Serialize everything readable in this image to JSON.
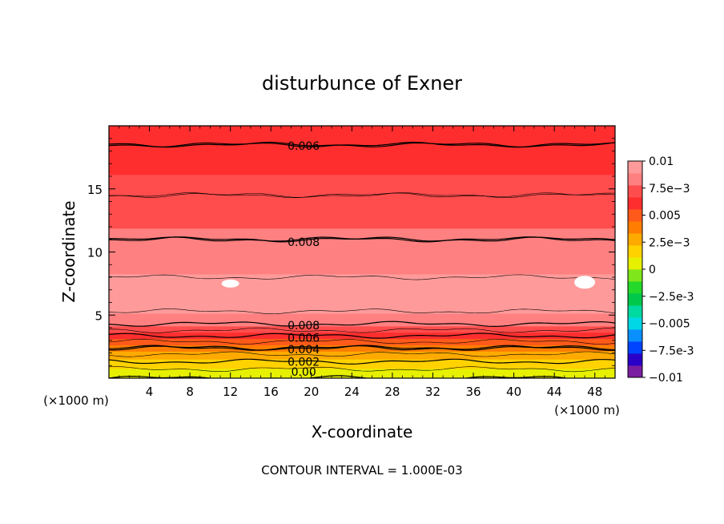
{
  "chart_data": {
    "type": "heatmap",
    "title": "disturbunce of Exner",
    "xlabel": "X-coordinate",
    "ylabel": "Z-coordinate",
    "x_unit_left": "(×1000 m)",
    "x_unit_right": "(×1000 m)",
    "xlim": [
      0,
      50
    ],
    "ylim": [
      0,
      20
    ],
    "x_ticks": [
      4,
      8,
      12,
      16,
      20,
      24,
      28,
      32,
      36,
      40,
      44,
      48
    ],
    "y_ticks": [
      5,
      10,
      15
    ],
    "x_tick_labels": [
      "4",
      "8",
      "12",
      "16",
      "20",
      "24",
      "28",
      "32",
      "36",
      "40",
      "44",
      "48"
    ],
    "y_tick_labels": [
      "5",
      "10",
      "15"
    ],
    "colorbar": {
      "range": [
        -0.01,
        0.01
      ],
      "tick_values": [
        -0.01,
        -0.0075,
        -0.005,
        -0.0025,
        0,
        0.0025,
        0.005,
        0.0075,
        0.01
      ],
      "tick_labels": [
        "-0.01",
        "-7.5e-3",
        "-0.005",
        "-2.5e-3",
        "0",
        "2.5e-3",
        "0.005",
        "7.5e-3",
        "0.01"
      ],
      "colors": [
        "#7a1fa2",
        "#2a00c8",
        "#0044ff",
        "#0a8fff",
        "#00d7e6",
        "#00d9a0",
        "#00c84a",
        "#25d92a",
        "#7ee61a",
        "#e6f000",
        "#ffd200",
        "#ffaa00",
        "#ff7d00",
        "#ff5a1a",
        "#ff2e2e",
        "#ff4d4d",
        "#ff8080",
        "#ff9a9a"
      ]
    },
    "contour_interval": 0.001,
    "contour_labels": [
      {
        "text": "0.006",
        "x": 19,
        "z": 18.4
      },
      {
        "text": "0.008",
        "x": 19,
        "z": 10.8
      },
      {
        "text": "0.008",
        "x": 19,
        "z": 4.2
      },
      {
        "text": "0.006",
        "x": 19,
        "z": 3.2
      },
      {
        "text": "0.004",
        "x": 19,
        "z": 2.3
      },
      {
        "text": "0.002",
        "x": 19,
        "z": 1.3
      },
      {
        "text": "0.00",
        "x": 19,
        "z": 0.5
      }
    ],
    "field_profile": [
      {
        "z": 0.0,
        "value": 0.0
      },
      {
        "z": 0.6,
        "value": 0.0008
      },
      {
        "z": 1.2,
        "value": 0.0018
      },
      {
        "z": 1.8,
        "value": 0.0028
      },
      {
        "z": 2.4,
        "value": 0.004
      },
      {
        "z": 3.0,
        "value": 0.0052
      },
      {
        "z": 3.5,
        "value": 0.0063
      },
      {
        "z": 4.0,
        "value": 0.0075
      },
      {
        "z": 4.6,
        "value": 0.0085
      },
      {
        "z": 6.0,
        "value": 0.0095
      },
      {
        "z": 7.5,
        "value": 0.0092
      },
      {
        "z": 8.5,
        "value": 0.0088
      },
      {
        "z": 10.0,
        "value": 0.0082
      },
      {
        "z": 11.0,
        "value": 0.008
      },
      {
        "z": 13.0,
        "value": 0.0075
      },
      {
        "z": 14.5,
        "value": 0.007
      },
      {
        "z": 16.5,
        "value": 0.0066
      },
      {
        "z": 18.5,
        "value": 0.006
      },
      {
        "z": 20.0,
        "value": 0.0058
      }
    ],
    "footer": "CONTOUR INTERVAL = 1.000E-03"
  }
}
